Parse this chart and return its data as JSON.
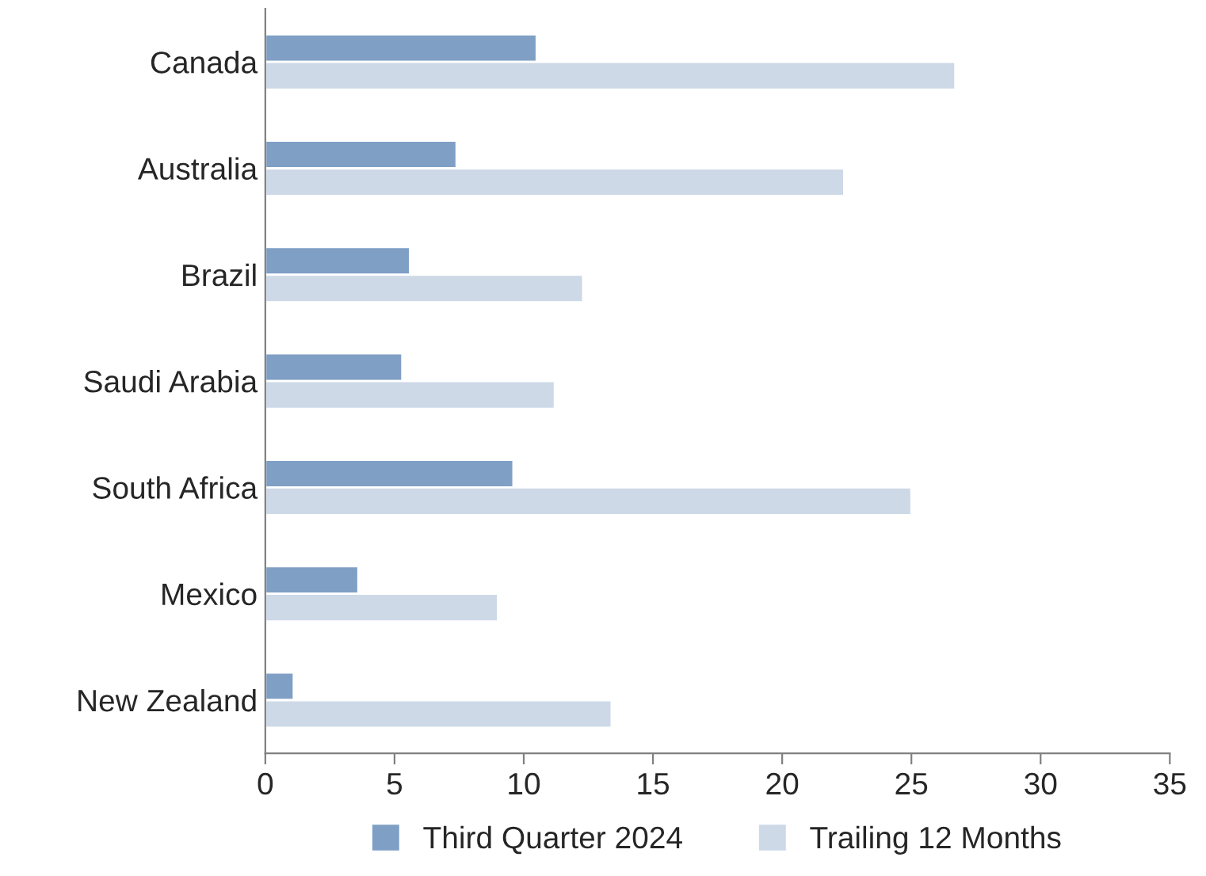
{
  "chart_data": {
    "type": "bar",
    "orientation": "horizontal",
    "categories": [
      "Canada",
      "Australia",
      "Brazil",
      "Saudi Arabia",
      "South Africa",
      "Mexico",
      "New Zealand"
    ],
    "series": [
      {
        "name": "Third Quarter 2024",
        "color": "#7f9fc5",
        "values": [
          10.5,
          7.4,
          5.6,
          5.3,
          9.6,
          3.6,
          1.1
        ]
      },
      {
        "name": "Trailing 12 Months",
        "color": "#cdd9e7",
        "values": [
          26.7,
          22.4,
          12.3,
          11.2,
          25.0,
          9.0,
          13.4
        ]
      }
    ],
    "xlim": [
      0,
      35
    ],
    "xticks": [
      0,
      5,
      10,
      15,
      20,
      25,
      30,
      35
    ],
    "grid": false,
    "legend": "bottom"
  }
}
